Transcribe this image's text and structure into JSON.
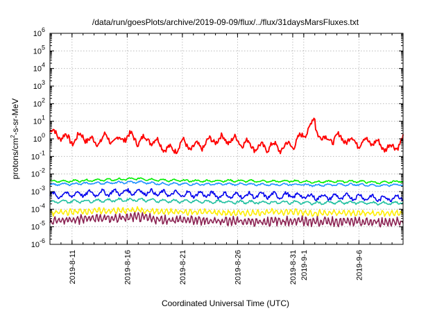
{
  "chart_data": {
    "type": "line",
    "title": "/data/run/goesPlots/archive/2019-09-09/flux/../flux/31daysMarsFluxes.txt",
    "xlabel": "Coordinated Universal Time (UTC)",
    "ylabel": "protons/cm2-s-sr-MeV",
    "ylabel_parts": {
      "before": "protons/cm",
      "sup": "2",
      "after": "-s-sr-MeV"
    },
    "yscale": "log",
    "ylim_exp": [
      -6,
      6
    ],
    "y_tick_base": "10",
    "y_tick_exponents": [
      "-6",
      "-5",
      "-4",
      "-3",
      "-2",
      "-1",
      "0",
      "1",
      "2",
      "3",
      "4",
      "5",
      "6"
    ],
    "x_range_days": [
      "2019-08-09",
      "2019-09-10"
    ],
    "x_ticks": [
      "2019-8-11",
      "2019-8-16",
      "2019-8-21",
      "2019-8-26",
      "2019-8-31",
      "2019-9-1",
      "2019-9-6"
    ],
    "grid": true,
    "series": [
      {
        "color": "#ff0000",
        "x": [
          "2019-08-09",
          "2019-08-10",
          "2019-08-11",
          "2019-08-12",
          "2019-08-13",
          "2019-08-14",
          "2019-08-15",
          "2019-08-16",
          "2019-08-17",
          "2019-08-18",
          "2019-08-19",
          "2019-08-20",
          "2019-08-21",
          "2019-08-22",
          "2019-08-23",
          "2019-08-24",
          "2019-08-25",
          "2019-08-26",
          "2019-08-27",
          "2019-08-28",
          "2019-08-29",
          "2019-08-30",
          "2019-08-31",
          "2019-09-01",
          "2019-09-01",
          "2019-09-02",
          "2019-09-02",
          "2019-09-03",
          "2019-09-04",
          "2019-09-05",
          "2019-09-06",
          "2019-09-07",
          "2019-09-08",
          "2019-09-09",
          "2019-09-10"
        ],
        "y": [
          2.5,
          1.5,
          0.8,
          1.5,
          0.6,
          1.2,
          0.7,
          1.6,
          0.8,
          1.0,
          0.5,
          0.2,
          0.6,
          0.3,
          0.5,
          1.0,
          0.9,
          0.8,
          0.5,
          0.3,
          0.4,
          0.3,
          0.5,
          1.5,
          2.0,
          11.0,
          4.0,
          0.8,
          1.2,
          0.9,
          0.6,
          0.8,
          0.4,
          0.3,
          0.8
        ]
      },
      {
        "color": "#00ee00",
        "x": [
          "2019-08-09",
          "2019-08-11",
          "2019-08-13",
          "2019-08-15",
          "2019-08-17",
          "2019-08-19",
          "2019-08-21",
          "2019-08-23",
          "2019-08-25",
          "2019-08-27",
          "2019-08-29",
          "2019-08-31",
          "2019-09-02",
          "2019-09-04",
          "2019-09-06",
          "2019-09-08",
          "2019-09-10"
        ],
        "y": [
          0.0038,
          0.004,
          0.0045,
          0.0048,
          0.0055,
          0.0045,
          0.0042,
          0.004,
          0.0042,
          0.004,
          0.0038,
          0.004,
          0.0035,
          0.0038,
          0.0038,
          0.0032,
          0.004
        ]
      },
      {
        "color": "#1e90ff",
        "x": [
          "2019-08-09",
          "2019-08-11",
          "2019-08-13",
          "2019-08-15",
          "2019-08-17",
          "2019-08-19",
          "2019-08-21",
          "2019-08-23",
          "2019-08-25",
          "2019-08-27",
          "2019-08-29",
          "2019-08-31",
          "2019-09-02",
          "2019-09-04",
          "2019-09-06",
          "2019-09-08",
          "2019-09-10"
        ],
        "y": [
          0.0025,
          0.0027,
          0.003,
          0.0032,
          0.0035,
          0.0028,
          0.0027,
          0.0026,
          0.0027,
          0.0026,
          0.0025,
          0.0026,
          0.0023,
          0.0025,
          0.0025,
          0.0022,
          0.0026
        ]
      },
      {
        "color": "#0000ee",
        "x": [
          "2019-08-09",
          "2019-08-11",
          "2019-08-13",
          "2019-08-15",
          "2019-08-17",
          "2019-08-19",
          "2019-08-21",
          "2019-08-23",
          "2019-08-25",
          "2019-08-27",
          "2019-08-29",
          "2019-08-31",
          "2019-09-02",
          "2019-09-04",
          "2019-09-06",
          "2019-09-08",
          "2019-09-10"
        ],
        "y": [
          0.0006,
          0.0007,
          0.0008,
          0.0009,
          0.001,
          0.0008,
          0.0007,
          0.0007,
          0.0006,
          0.0006,
          0.0006,
          0.0006,
          0.0005,
          0.0005,
          0.0005,
          0.0004,
          0.0005
        ]
      },
      {
        "color": "#20c0a0",
        "x": [
          "2019-08-09",
          "2019-08-11",
          "2019-08-13",
          "2019-08-15",
          "2019-08-17",
          "2019-08-19",
          "2019-08-21",
          "2019-08-23",
          "2019-08-25",
          "2019-08-27",
          "2019-08-29",
          "2019-08-31",
          "2019-09-02",
          "2019-09-04",
          "2019-09-06",
          "2019-09-08",
          "2019-09-10"
        ],
        "y": [
          0.00025,
          0.00028,
          0.0003,
          0.00033,
          0.00035,
          0.0003,
          0.00028,
          0.00027,
          0.00026,
          0.00025,
          0.00024,
          0.00025,
          0.00022,
          0.00024,
          0.00024,
          0.00021,
          0.00024
        ]
      },
      {
        "color": "#ffee00",
        "x": [
          "2019-08-09",
          "2019-08-11",
          "2019-08-13",
          "2019-08-15",
          "2019-08-17",
          "2019-08-19",
          "2019-08-21",
          "2019-08-23",
          "2019-08-25",
          "2019-08-27",
          "2019-08-29",
          "2019-08-31",
          "2019-09-02",
          "2019-09-04",
          "2019-09-06",
          "2019-09-08",
          "2019-09-10"
        ],
        "y": [
          6e-05,
          7e-05,
          8e-05,
          8e-05,
          9e-05,
          7e-05,
          7e-05,
          7e-05,
          6e-05,
          6e-05,
          7e-05,
          7e-05,
          6e-05,
          6e-05,
          6e-05,
          6e-05,
          6e-05
        ]
      },
      {
        "color": "#8b2252",
        "x": [
          "2019-08-09",
          "2019-08-11",
          "2019-08-13",
          "2019-08-15",
          "2019-08-17",
          "2019-08-19",
          "2019-08-21",
          "2019-08-23",
          "2019-08-25",
          "2019-08-27",
          "2019-08-29",
          "2019-08-31",
          "2019-09-02",
          "2019-09-04",
          "2019-09-06",
          "2019-09-08",
          "2019-09-10"
        ],
        "y": [
          2e-05,
          2.5e-05,
          3e-05,
          3e-05,
          3.5e-05,
          2.5e-05,
          2.5e-05,
          2.2e-05,
          2.2e-05,
          2e-05,
          2e-05,
          2.2e-05,
          2e-05,
          2e-05,
          1.8e-05,
          1.8e-05,
          2e-05
        ]
      }
    ]
  }
}
